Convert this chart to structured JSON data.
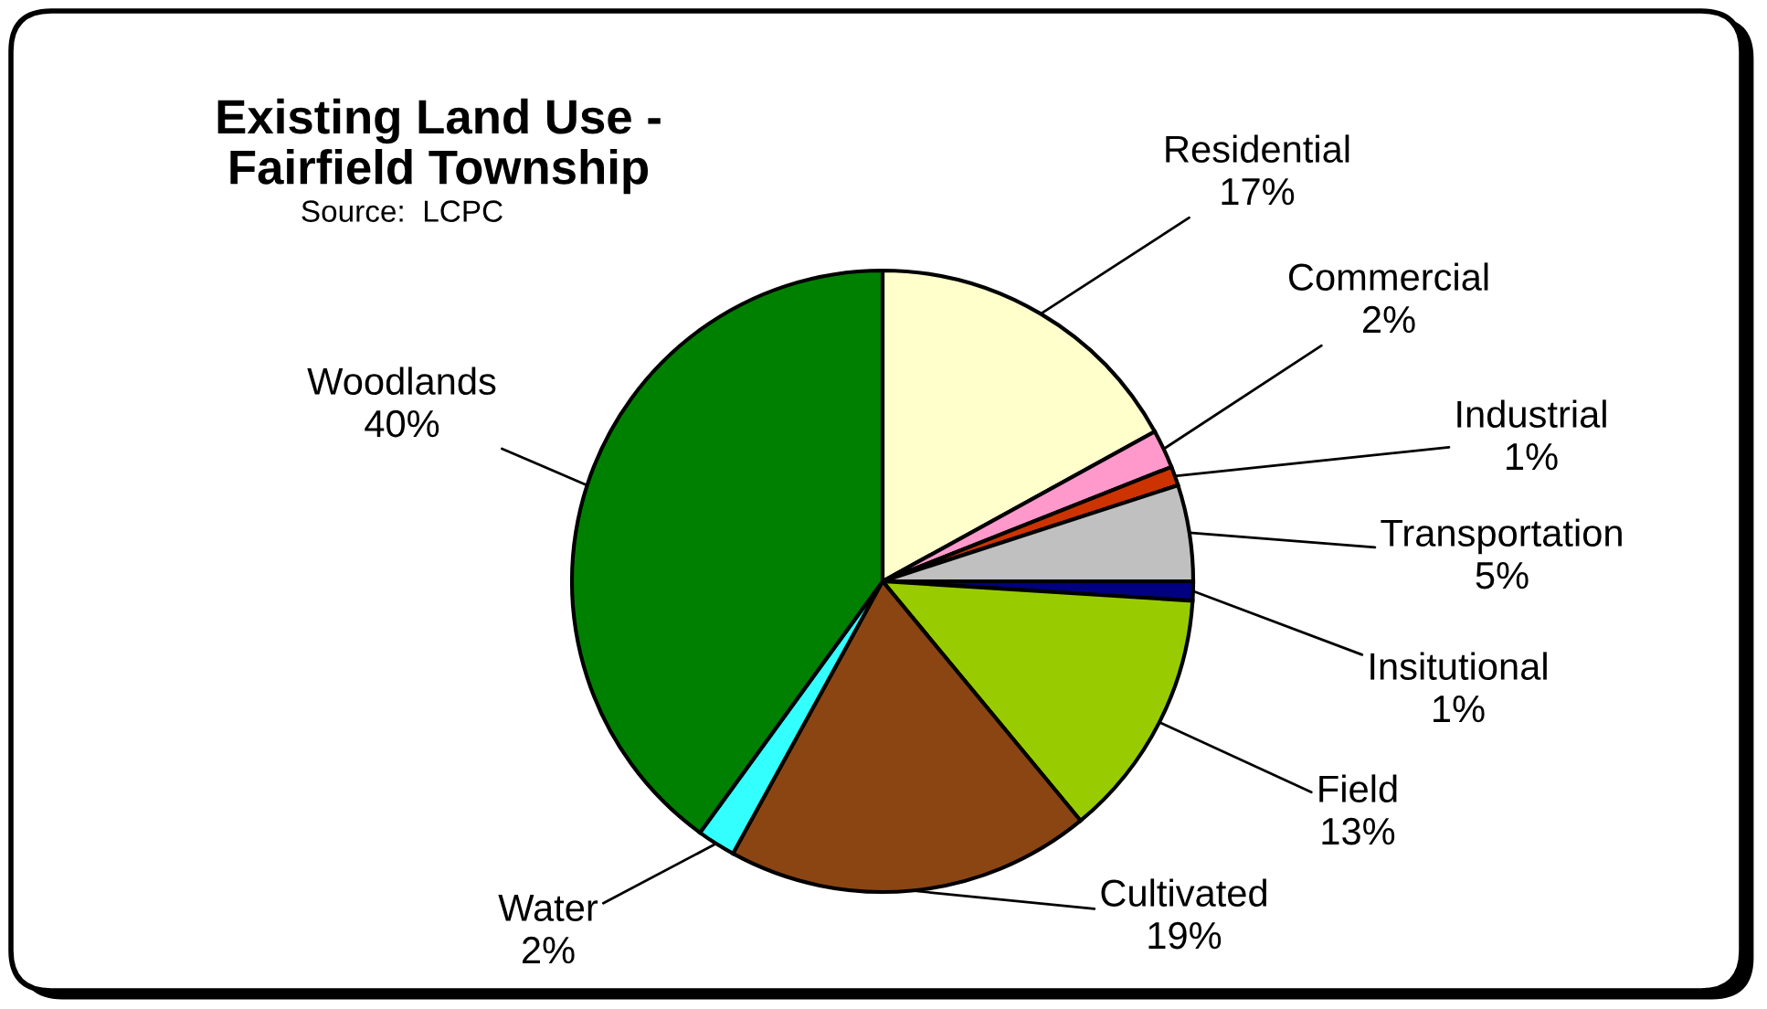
{
  "chart_data": {
    "type": "pie",
    "title": "Existing Land Use -\nFairfield Township",
    "annotations": [
      "Source:  LCPC"
    ],
    "categories": [
      "Residential",
      "Commercial",
      "Industrial",
      "Transportation",
      "Insitutional",
      "Field",
      "Cultivated",
      "Water",
      "Woodlands"
    ],
    "values": [
      17,
      2,
      1,
      5,
      1,
      13,
      19,
      2,
      40
    ],
    "value_labels": [
      "17%",
      "2%",
      "1%",
      "5%",
      "1%",
      "13%",
      "19%",
      "2%",
      "40%"
    ],
    "colors": [
      "#ffffcc",
      "#ff99cc",
      "#cc3300",
      "#c0c0c0",
      "#000080",
      "#99cc00",
      "#8b4513",
      "#33ffff",
      "#008000"
    ],
    "legend": false
  }
}
